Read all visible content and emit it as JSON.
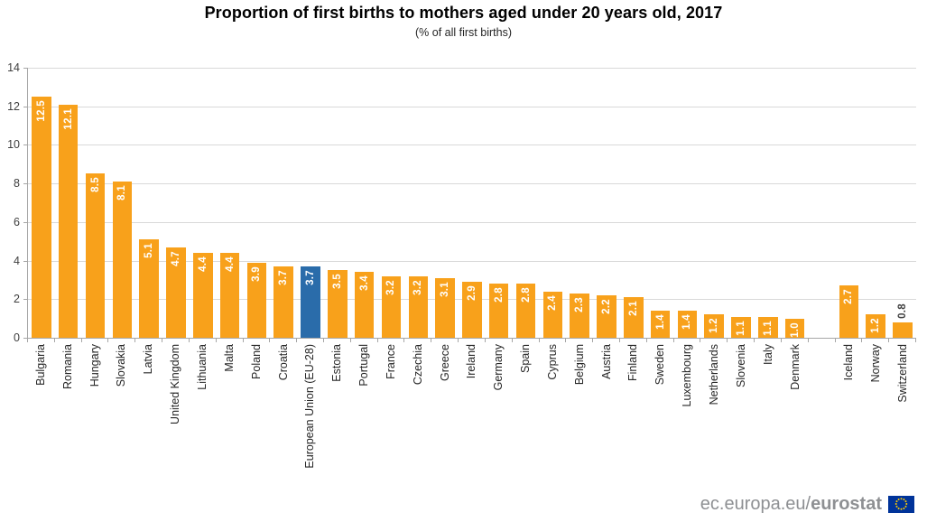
{
  "title": "Proportion of first births to mothers aged under 20 years old, 2017",
  "subtitle": "(% of all first births)",
  "footer": {
    "url_prefix": "ec.europa.eu/",
    "url_bold": "eurostat",
    "flag_icon": "eu-flag"
  },
  "colors": {
    "bar_default": "#f8a11b",
    "bar_highlight": "#2a6caa",
    "gridline": "#d9d9d9",
    "axis": "#a6a6a6",
    "value_label_inside": "#ffffff",
    "value_label_outside": "#404040"
  },
  "chart_data": {
    "type": "bar",
    "title": "Proportion of first births to mothers aged under 20 years old, 2017",
    "subtitle": "(% of all first births)",
    "xlabel": "",
    "ylabel": "",
    "ylim": [
      0,
      14
    ],
    "yticks": [
      0,
      2,
      4,
      6,
      8,
      10,
      12,
      14
    ],
    "grid": true,
    "legend": false,
    "highlight_category": "European Union (EU-28)",
    "bars": [
      {
        "country": "Bulgaria",
        "value": 12.5,
        "label": "12.5"
      },
      {
        "country": "Romania",
        "value": 12.1,
        "label": "12.1"
      },
      {
        "country": "Hungary",
        "value": 8.5,
        "label": "8.5"
      },
      {
        "country": "Slovakia",
        "value": 8.1,
        "label": "8.1"
      },
      {
        "country": "Latvia",
        "value": 5.1,
        "label": "5.1"
      },
      {
        "country": "United Kingdom",
        "value": 4.7,
        "label": "4.7"
      },
      {
        "country": "Lithuania",
        "value": 4.4,
        "label": "4.4"
      },
      {
        "country": "Malta",
        "value": 4.4,
        "label": "4.4"
      },
      {
        "country": "Poland",
        "value": 3.9,
        "label": "3.9"
      },
      {
        "country": "Croatia",
        "value": 3.7,
        "label": "3.7"
      },
      {
        "country": "European Union (EU-28)",
        "value": 3.7,
        "label": "3.7",
        "highlight": true
      },
      {
        "country": "Estonia",
        "value": 3.5,
        "label": "3.5"
      },
      {
        "country": "Portugal",
        "value": 3.4,
        "label": "3.4"
      },
      {
        "country": "France",
        "value": 3.2,
        "label": "3.2"
      },
      {
        "country": "Czechia",
        "value": 3.2,
        "label": "3.2"
      },
      {
        "country": "Greece",
        "value": 3.1,
        "label": "3.1"
      },
      {
        "country": "Ireland",
        "value": 2.9,
        "label": "2.9"
      },
      {
        "country": "Germany",
        "value": 2.8,
        "label": "2.8"
      },
      {
        "country": "Spain",
        "value": 2.8,
        "label": "2.8"
      },
      {
        "country": "Cyprus",
        "value": 2.4,
        "label": "2.4"
      },
      {
        "country": "Belgium",
        "value": 2.3,
        "label": "2.3"
      },
      {
        "country": "Austria",
        "value": 2.2,
        "label": "2.2"
      },
      {
        "country": "Finland",
        "value": 2.1,
        "label": "2.1"
      },
      {
        "country": "Sweden",
        "value": 1.4,
        "label": "1.4"
      },
      {
        "country": "Luxembourg",
        "value": 1.4,
        "label": "1.4"
      },
      {
        "country": "Netherlands",
        "value": 1.2,
        "label": "1.2"
      },
      {
        "country": "Slovenia",
        "value": 1.1,
        "label": "1.1"
      },
      {
        "country": "Italy",
        "value": 1.1,
        "label": "1.1"
      },
      {
        "country": "Denmark",
        "value": 1.0,
        "label": "1.0"
      },
      {
        "country": "",
        "value": null
      },
      {
        "country": "Iceland",
        "value": 2.7,
        "label": "2.7"
      },
      {
        "country": "Norway",
        "value": 1.2,
        "label": "1.2"
      },
      {
        "country": "Switzerland",
        "value": 0.8,
        "label": "0.8",
        "label_outside": true
      }
    ]
  }
}
